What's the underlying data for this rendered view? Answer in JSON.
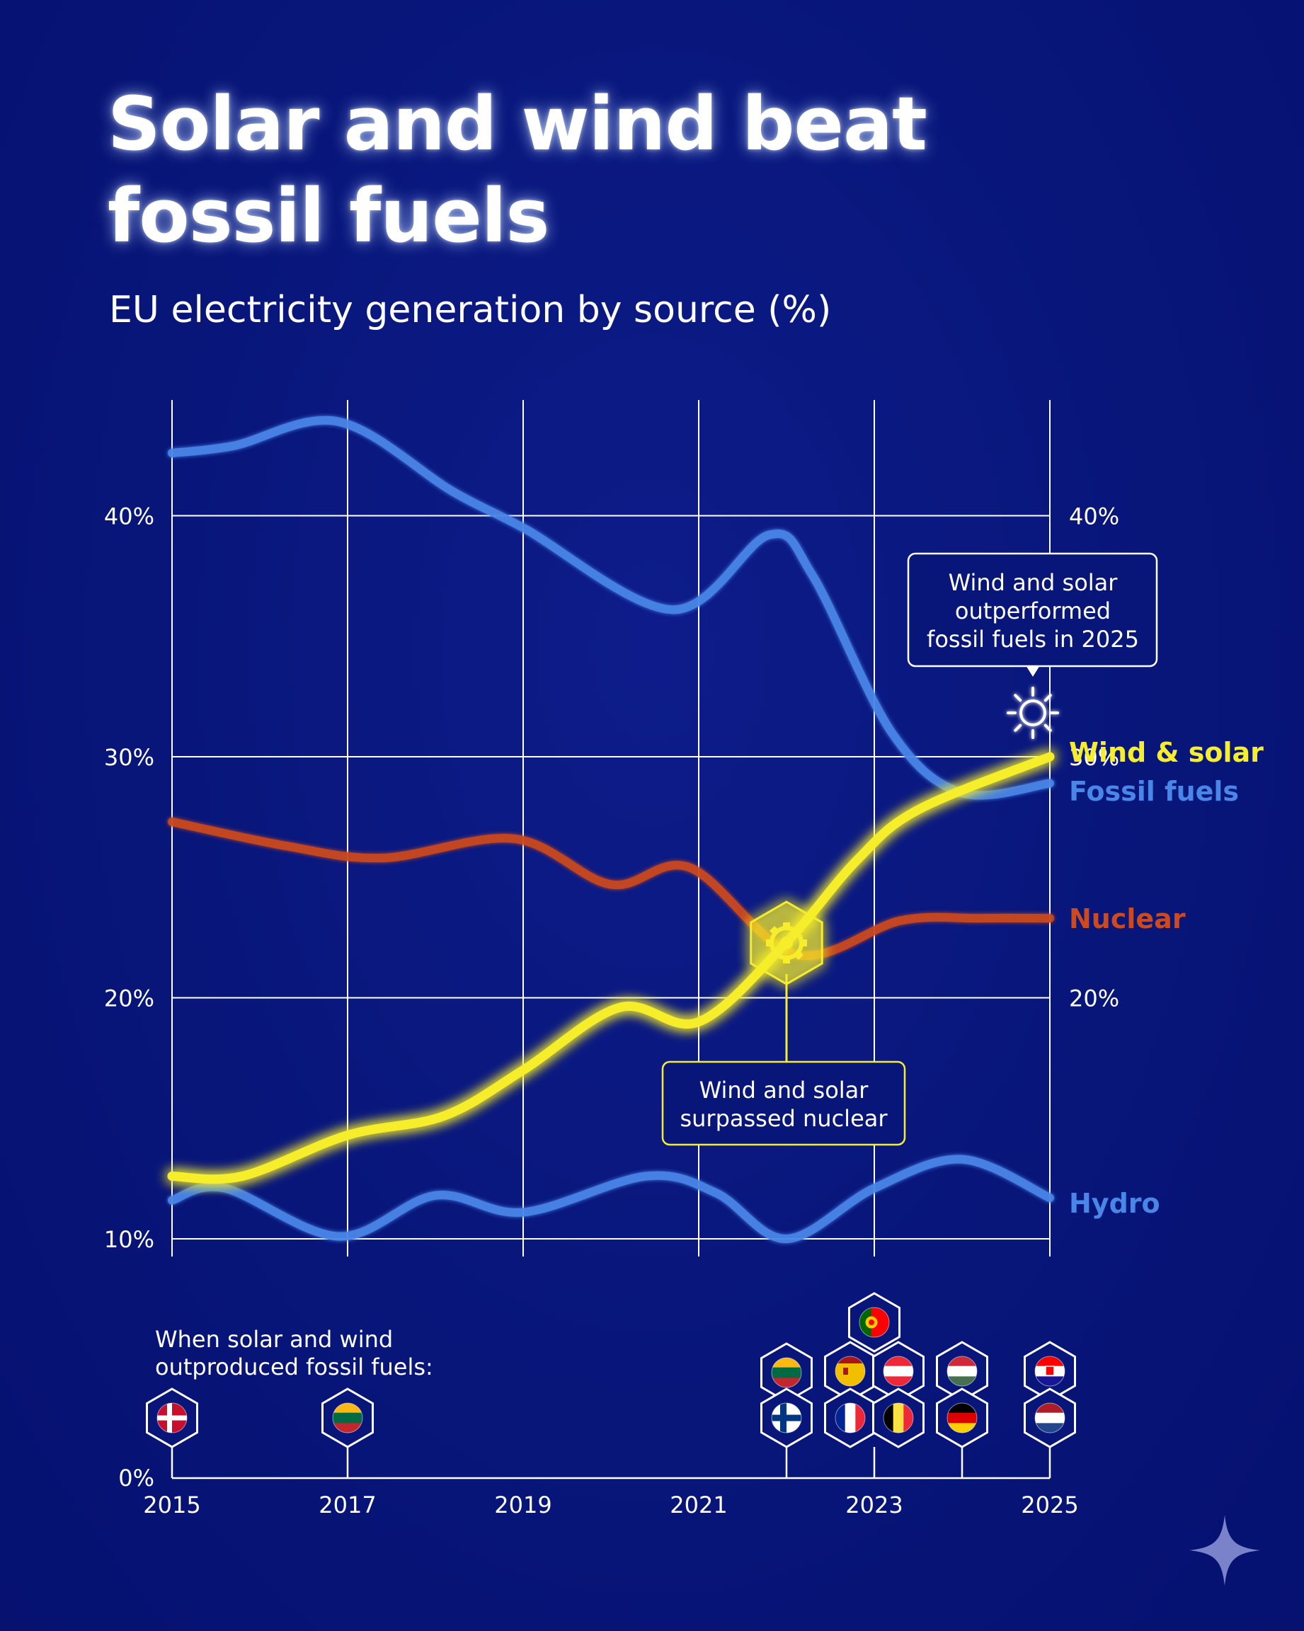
{
  "title_line1": "Solar and wind beat",
  "title_line2": "fossil fuels",
  "subtitle": "EU electricity generation by source (%)",
  "colors": {
    "background": "#08167a",
    "fossil": "#4a86e8",
    "hydro": "#4a86e8",
    "nuclear": "#cc4a1e",
    "wind_solar": "#f6ee2c",
    "grid": "#ffffff"
  },
  "chart_data": {
    "type": "line",
    "title": "Solar and wind beat fossil fuels",
    "subtitle": "EU electricity generation by source (%)",
    "xlim": [
      2015,
      2025
    ],
    "ylim": [
      10,
      45
    ],
    "y_ticks": [
      10,
      20,
      30,
      40
    ],
    "y_tick_labels": [
      "10%",
      "20%",
      "30%",
      "40%"
    ],
    "right_y_ticks": [
      20,
      30,
      40
    ],
    "right_y_tick_labels": [
      "20%",
      "30%",
      "40%"
    ],
    "x_gridlines": [
      2015,
      2017,
      2019,
      2021,
      2023,
      2025
    ],
    "x_tick_labels": [
      "2015",
      "2017",
      "2019",
      "2021",
      "2023",
      "2025"
    ],
    "grid": true,
    "series": [
      {
        "name": "Fossil fuels",
        "color": "#4a86e8",
        "x": [
          2015,
          2015.7,
          2016.9,
          2018.2,
          2019.0,
          2020.7,
          2021.8,
          2022.3,
          2023.2,
          2024.0,
          2025
        ],
        "values": [
          42.6,
          42.9,
          43.9,
          41.0,
          39.5,
          36.1,
          39.2,
          37.5,
          31.0,
          28.5,
          28.9
        ]
      },
      {
        "name": "Wind & solar",
        "color": "#f6ee2c",
        "x": [
          2015,
          2015.8,
          2017.0,
          2018.1,
          2019.0,
          2020.1,
          2021.0,
          2022.0,
          2022.8,
          2023.5,
          2025
        ],
        "values": [
          12.6,
          12.6,
          14.3,
          15.1,
          17.0,
          19.6,
          19.0,
          22.3,
          25.7,
          27.8,
          30.0
        ]
      },
      {
        "name": "Nuclear",
        "color": "#cc4a1e",
        "x": [
          2015,
          2016.3,
          2017.4,
          2018.9,
          2020.0,
          2020.9,
          2022.1,
          2023.3,
          2024.2,
          2025
        ],
        "values": [
          27.3,
          26.3,
          25.8,
          26.6,
          24.7,
          25.4,
          21.8,
          23.2,
          23.3,
          23.3
        ]
      },
      {
        "name": "Hydro",
        "color": "#4a86e8",
        "x": [
          2015,
          2015.6,
          2016.9,
          2018.0,
          2019.0,
          2020.4,
          2021.2,
          2022.0,
          2023.0,
          2024.0,
          2025
        ],
        "values": [
          11.6,
          12.1,
          10.1,
          11.8,
          11.1,
          12.6,
          11.9,
          10.0,
          12.1,
          13.3,
          11.7
        ]
      }
    ],
    "annotations": [
      {
        "text_lines": [
          "Wind and solar",
          "outperformed",
          "fossil fuels in 2025"
        ],
        "x": 2025,
        "y": 30,
        "marker": "sun-icon"
      },
      {
        "text_lines": [
          "Wind and solar",
          "surpassed nuclear"
        ],
        "x": 2022,
        "y": 22.3,
        "marker": "gear-icon"
      }
    ]
  },
  "flags_panel": {
    "caption_line1": "When solar and wind",
    "caption_line2": "outproduced fossil fuels:",
    "zero_label": "0%",
    "groups": [
      {
        "year": 2015,
        "flags": [
          "denmark"
        ]
      },
      {
        "year": 2017,
        "flags": [
          "lithuania"
        ]
      },
      {
        "year": 2022,
        "flags": [
          "lithuania",
          "finland"
        ]
      },
      {
        "year": 2023,
        "flags": [
          "portugal",
          "spain",
          "austria",
          "france",
          "belgium"
        ]
      },
      {
        "year": 2024,
        "flags": [
          "hungary",
          "germany"
        ]
      },
      {
        "year": 2025,
        "flags": [
          "croatia",
          "netherlands"
        ]
      }
    ]
  }
}
